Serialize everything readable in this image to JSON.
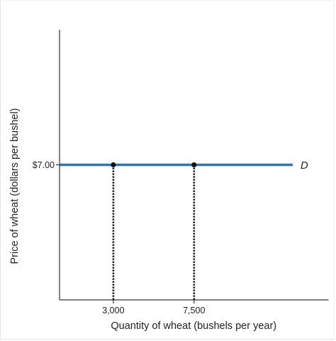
{
  "chart_data": {
    "type": "line",
    "xlabel": "Quantity of wheat (bushels per year)",
    "ylabel": "Price of wheat (dollars per bushel)",
    "x_ticks": [
      {
        "value": 3000,
        "label": "3,000"
      },
      {
        "value": 7500,
        "label": "7,500"
      }
    ],
    "y_ticks": [
      {
        "value": 7.0,
        "label": "$7.00"
      }
    ],
    "xlim": [
      0,
      15000
    ],
    "ylim": [
      0,
      14
    ],
    "grid": false,
    "series": [
      {
        "name": "D",
        "color": "#2f73b8",
        "points": [
          [
            0,
            7.0
          ],
          [
            13000,
            7.0
          ]
        ]
      }
    ],
    "markers": [
      {
        "x": 3000,
        "y": 7.0
      },
      {
        "x": 7500,
        "y": 7.0
      }
    ],
    "dropline_style": "dotted"
  }
}
